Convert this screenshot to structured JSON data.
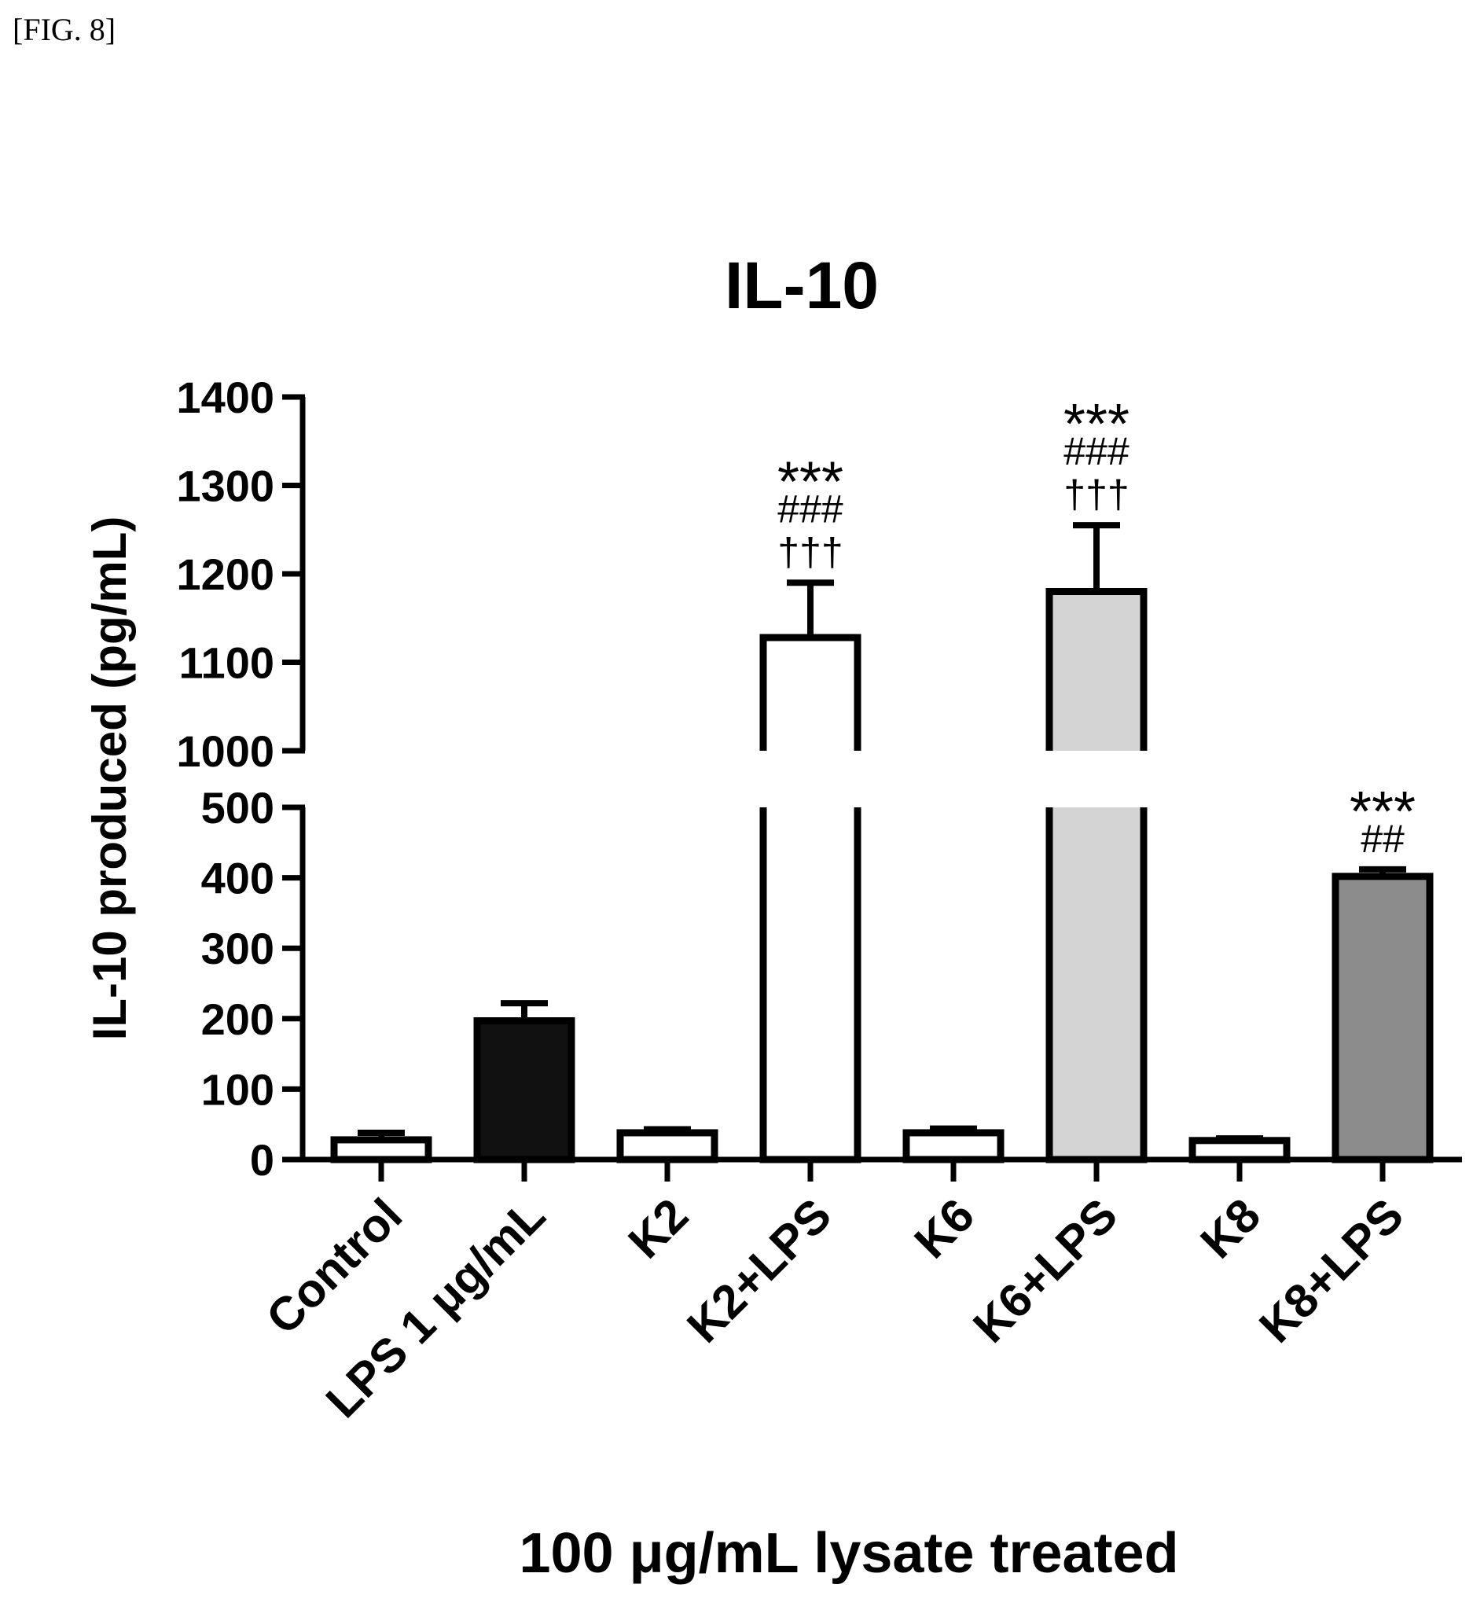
{
  "figure_label": "[FIG. 8]",
  "chart_data": {
    "type": "bar",
    "title": "IL-10",
    "xlabel": "100 μg/mL lysate treated",
    "ylabel": "IL-10 produced (pg/mL)",
    "axis_break": {
      "lower_range": [
        0,
        500
      ],
      "upper_range": [
        1000,
        1400
      ]
    },
    "ylim": [
      0,
      1400
    ],
    "yticks_lower": [
      0,
      100,
      200,
      300,
      400,
      500
    ],
    "yticks_upper": [
      1000,
      1100,
      1200,
      1300,
      1400
    ],
    "categories": [
      "Control",
      "LPS 1 μg/mL",
      "K2",
      "K2+LPS",
      "K6",
      "K6+LPS",
      "K8",
      "K8+LPS"
    ],
    "values": [
      28,
      197,
      38,
      1128,
      38,
      1180,
      27,
      402
    ],
    "errors": [
      10,
      25,
      5,
      62,
      6,
      75,
      3,
      10
    ],
    "fills": [
      "#ffffff",
      "#111111",
      "#ffffff",
      "#ffffff",
      "#ffffff",
      "#d4d4d4",
      "#ffffff",
      "#8c8c8c"
    ],
    "annotations": [
      [],
      [],
      [],
      [
        "***",
        "###",
        "†††"
      ],
      [],
      [
        "***",
        "###",
        "†††"
      ],
      [],
      [
        "***",
        "##"
      ]
    ],
    "grid": false,
    "legend": "none"
  }
}
